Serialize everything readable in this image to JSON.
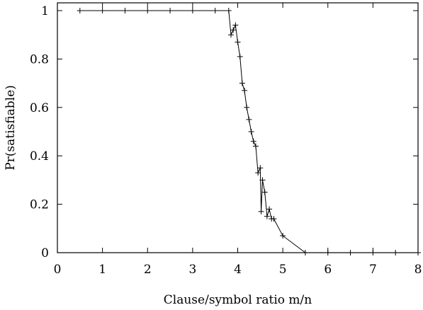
{
  "chart_data": {
    "type": "line",
    "title": "",
    "xlabel": "Clause/symbol ratio m/n",
    "ylabel": "Pr(satisfiable)",
    "xlim": [
      0,
      8
    ],
    "ylim": [
      0,
      1
    ],
    "x_ticks": [
      "0",
      "1",
      "2",
      "3",
      "4",
      "5",
      "6",
      "7",
      "8"
    ],
    "y_ticks": [
      "0",
      "0.2",
      "0.4",
      "0.6",
      "0.8",
      "1"
    ],
    "grid": false,
    "marker": "plus",
    "reference_line": {
      "y": 0,
      "style": "dotted"
    },
    "series": [
      {
        "x": [
          0.5,
          1.0,
          1.5,
          2.0,
          2.5,
          3.0,
          3.5,
          3.8,
          3.85,
          3.9,
          3.95,
          4.0,
          4.05,
          4.1,
          4.15,
          4.2,
          4.25,
          4.3,
          4.35,
          4.4,
          4.45,
          4.5,
          4.52,
          4.55,
          4.6,
          4.65,
          4.7,
          4.75,
          4.8,
          5.0,
          5.5,
          6.0,
          6.5,
          7.0,
          7.5,
          8.0
        ],
        "y": [
          1.0,
          1.0,
          1.0,
          1.0,
          1.0,
          1.0,
          1.0,
          1.0,
          0.9,
          0.92,
          0.94,
          0.87,
          0.81,
          0.7,
          0.67,
          0.6,
          0.55,
          0.5,
          0.46,
          0.44,
          0.33,
          0.35,
          0.17,
          0.3,
          0.25,
          0.15,
          0.18,
          0.14,
          0.14,
          0.07,
          0.0,
          0.0,
          0.0,
          0.0,
          0.0,
          0.0
        ]
      }
    ]
  }
}
